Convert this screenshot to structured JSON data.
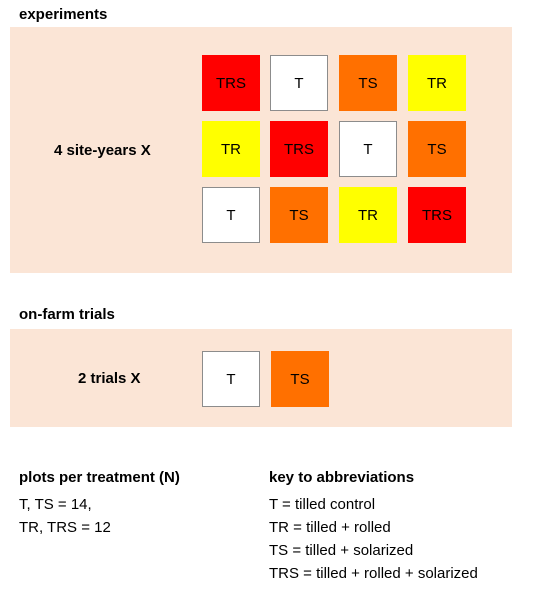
{
  "experiments": {
    "heading": "experiments",
    "row_label": "4 site-years  X",
    "grid": [
      [
        {
          "text": "TRS",
          "color": "#ff0000"
        },
        {
          "text": "T",
          "color": "#ffffff"
        },
        {
          "text": "TS",
          "color": "#ff7000"
        },
        {
          "text": "TR",
          "color": "#ffff00"
        }
      ],
      [
        {
          "text": "TR",
          "color": "#ffff00"
        },
        {
          "text": "TRS",
          "color": "#ff0000"
        },
        {
          "text": "T",
          "color": "#ffffff"
        },
        {
          "text": "TS",
          "color": "#ff7000"
        }
      ],
      [
        {
          "text": "T",
          "color": "#ffffff"
        },
        {
          "text": "TS",
          "color": "#ff7000"
        },
        {
          "text": "TR",
          "color": "#ffff00"
        },
        {
          "text": "TRS",
          "color": "#ff0000"
        }
      ]
    ]
  },
  "on_farm": {
    "heading": "on-farm trials",
    "row_label": "2 trials  X",
    "cells": [
      {
        "text": "T",
        "color": "#ffffff"
      },
      {
        "text": "TS",
        "color": "#ff7000"
      }
    ]
  },
  "plots": {
    "heading": "plots per treatment (N)",
    "lines": [
      "T, TS = 14,",
      "TR, TRS = 12"
    ]
  },
  "key": {
    "heading": "key to abbreviations",
    "lines": [
      "T = tilled control",
      "TR = tilled + rolled",
      "TS = tilled + solarized",
      "TRS = tilled + rolled + solarized"
    ]
  },
  "colors": {
    "panel_background": "#fbe5d6",
    "red": "#ff0000",
    "orange": "#ff7000",
    "yellow": "#ffff00",
    "white": "#ffffff"
  }
}
